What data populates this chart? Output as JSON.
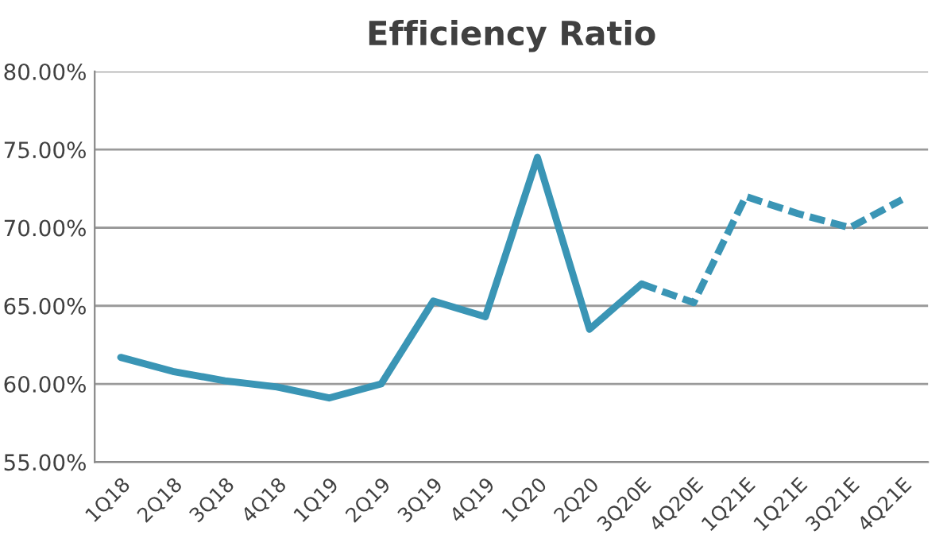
{
  "chart_data": {
    "type": "line",
    "title": "Efficiency Ratio",
    "categories": [
      "1Q18",
      "2Q18",
      "3Q18",
      "4Q18",
      "1Q19",
      "2Q19",
      "3Q19",
      "4Q19",
      "1Q20",
      "2Q20",
      "3Q20E",
      "4Q20E",
      "1Q21E",
      "1Q21E",
      "3Q21E",
      "4Q21E"
    ],
    "series": [
      {
        "color": "#3a95b5",
        "line_style": "solid",
        "values": [
          61.7,
          60.8,
          60.2,
          59.8,
          59.1,
          60.0,
          65.3,
          64.3,
          74.5,
          63.5,
          66.4,
          null,
          null,
          null,
          null,
          null
        ]
      },
      {
        "color": "#3a95b5",
        "line_style": "dashed",
        "values": [
          null,
          null,
          null,
          null,
          null,
          null,
          null,
          null,
          null,
          null,
          66.4,
          65.2,
          72.0,
          70.9,
          70.0,
          71.8
        ]
      }
    ],
    "ylim": [
      55,
      80
    ],
    "yticks": [
      {
        "value": 55,
        "label": "55.00%"
      },
      {
        "value": 60,
        "label": "60.00%"
      },
      {
        "value": 65,
        "label": "65.00%"
      },
      {
        "value": 70,
        "label": "70.00%"
      },
      {
        "value": 75,
        "label": "75.00%"
      },
      {
        "value": 80,
        "label": "80.00%"
      }
    ],
    "grid": "y",
    "legend": false,
    "marker": "none"
  }
}
